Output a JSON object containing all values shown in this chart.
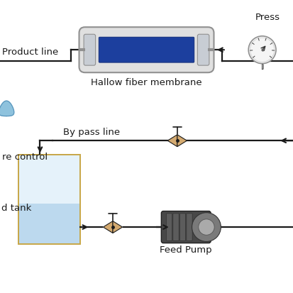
{
  "bg_color": "#ffffff",
  "black": "#1a1a1a",
  "membrane_fill": "#1c3f9e",
  "membrane_shell": "#d8d8d8",
  "membrane_cap": "#c0c8d0",
  "membrane_label": "Hallow fiber membrane",
  "product_line_label": "Product line",
  "press_label": "Press",
  "bypass_label": "By pass line",
  "re_control_label": "re control",
  "feed_tank_label": "d tank",
  "feed_pump_label": "Feed Pump",
  "tank_border_color": "#c8a84b",
  "tank_fill_top": "#e8f4fc",
  "tank_fill_bot": "#b8d8ee",
  "valve_color": "#d4aa70",
  "gauge_face": "#f5f5f5",
  "pump_body": "#4a4a4a",
  "pump_ring": "#5a5a5a",
  "pump_motor": "#8a8a8a",
  "lw": 1.6,
  "fs": 9.5
}
